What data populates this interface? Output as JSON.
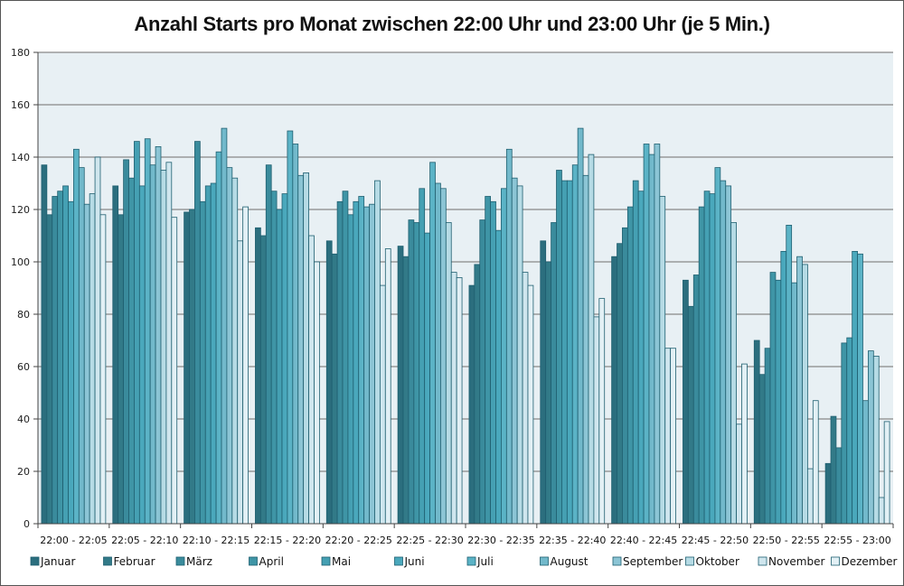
{
  "chart_data": {
    "type": "bar",
    "title": "Anzahl Starts pro Monat zwischen 22:00 Uhr und 23:00 Uhr (je 5 Min.)",
    "xlabel": "",
    "ylabel": "",
    "ylim": [
      0,
      180
    ],
    "yticks": [
      0,
      20,
      40,
      60,
      80,
      100,
      120,
      140,
      160,
      180
    ],
    "grid": true,
    "legend_position": "bottom",
    "categories": [
      "22:00 - 22:05",
      "22:05 - 22:10",
      "22:10 - 22:15",
      "22:15 - 22:20",
      "22:20 - 22:25",
      "22:25 - 22:30",
      "22:30 - 22:35",
      "22:35 - 22:40",
      "22:40 - 22:45",
      "22:45 - 22:50",
      "22:50 - 22:55",
      "22:55 - 23:00"
    ],
    "series": [
      {
        "name": "Januar",
        "color": "#2b6e7e",
        "values": [
          137,
          129,
          119,
          113,
          108,
          106,
          91,
          108,
          102,
          93,
          70,
          23
        ]
      },
      {
        "name": "Februar",
        "color": "#327a88",
        "values": [
          118,
          118,
          120,
          110,
          103,
          102,
          99,
          100,
          107,
          83,
          57,
          41
        ]
      },
      {
        "name": "März",
        "color": "#3a8b9c",
        "values": [
          125,
          139,
          146,
          137,
          123,
          116,
          116,
          115,
          113,
          95,
          67,
          29
        ]
      },
      {
        "name": "April",
        "color": "#3f95a6",
        "values": [
          127,
          132,
          123,
          127,
          127,
          115,
          125,
          135,
          121,
          121,
          96,
          69
        ]
      },
      {
        "name": "Mai",
        "color": "#45a0b3",
        "values": [
          129,
          146,
          129,
          120,
          118,
          128,
          123,
          131,
          131,
          127,
          93,
          71
        ]
      },
      {
        "name": "Juni",
        "color": "#4aa8bc",
        "values": [
          123,
          129,
          130,
          126,
          123,
          111,
          112,
          131,
          127,
          126,
          104,
          104
        ]
      },
      {
        "name": "Juli",
        "color": "#5bb3c6",
        "values": [
          143,
          147,
          142,
          150,
          125,
          138,
          128,
          137,
          145,
          136,
          114,
          103
        ]
      },
      {
        "name": "August",
        "color": "#72b9cb",
        "values": [
          136,
          137,
          151,
          145,
          121,
          130,
          143,
          151,
          141,
          131,
          92,
          47
        ]
      },
      {
        "name": "September",
        "color": "#8cc5d5",
        "values": [
          122,
          144,
          136,
          133,
          122,
          128,
          132,
          133,
          145,
          129,
          102,
          66
        ]
      },
      {
        "name": "Oktober",
        "color": "#b6dbe5",
        "values": [
          126,
          135,
          132,
          134,
          131,
          115,
          129,
          141,
          125,
          115,
          99,
          64
        ]
      },
      {
        "name": "November",
        "color": "#cfe6ee",
        "values": [
          140,
          138,
          108,
          110,
          91,
          96,
          96,
          79,
          67,
          38,
          21,
          10
        ]
      },
      {
        "name": "Dezember",
        "color": "#e2f0f5",
        "values": [
          118,
          117,
          121,
          100,
          105,
          94,
          91,
          86,
          67,
          61,
          47,
          39
        ]
      }
    ]
  },
  "colors": {
    "plot_bg": "#e8f0f4",
    "grid": "#888888",
    "bar_outline": "#1f5f70"
  }
}
